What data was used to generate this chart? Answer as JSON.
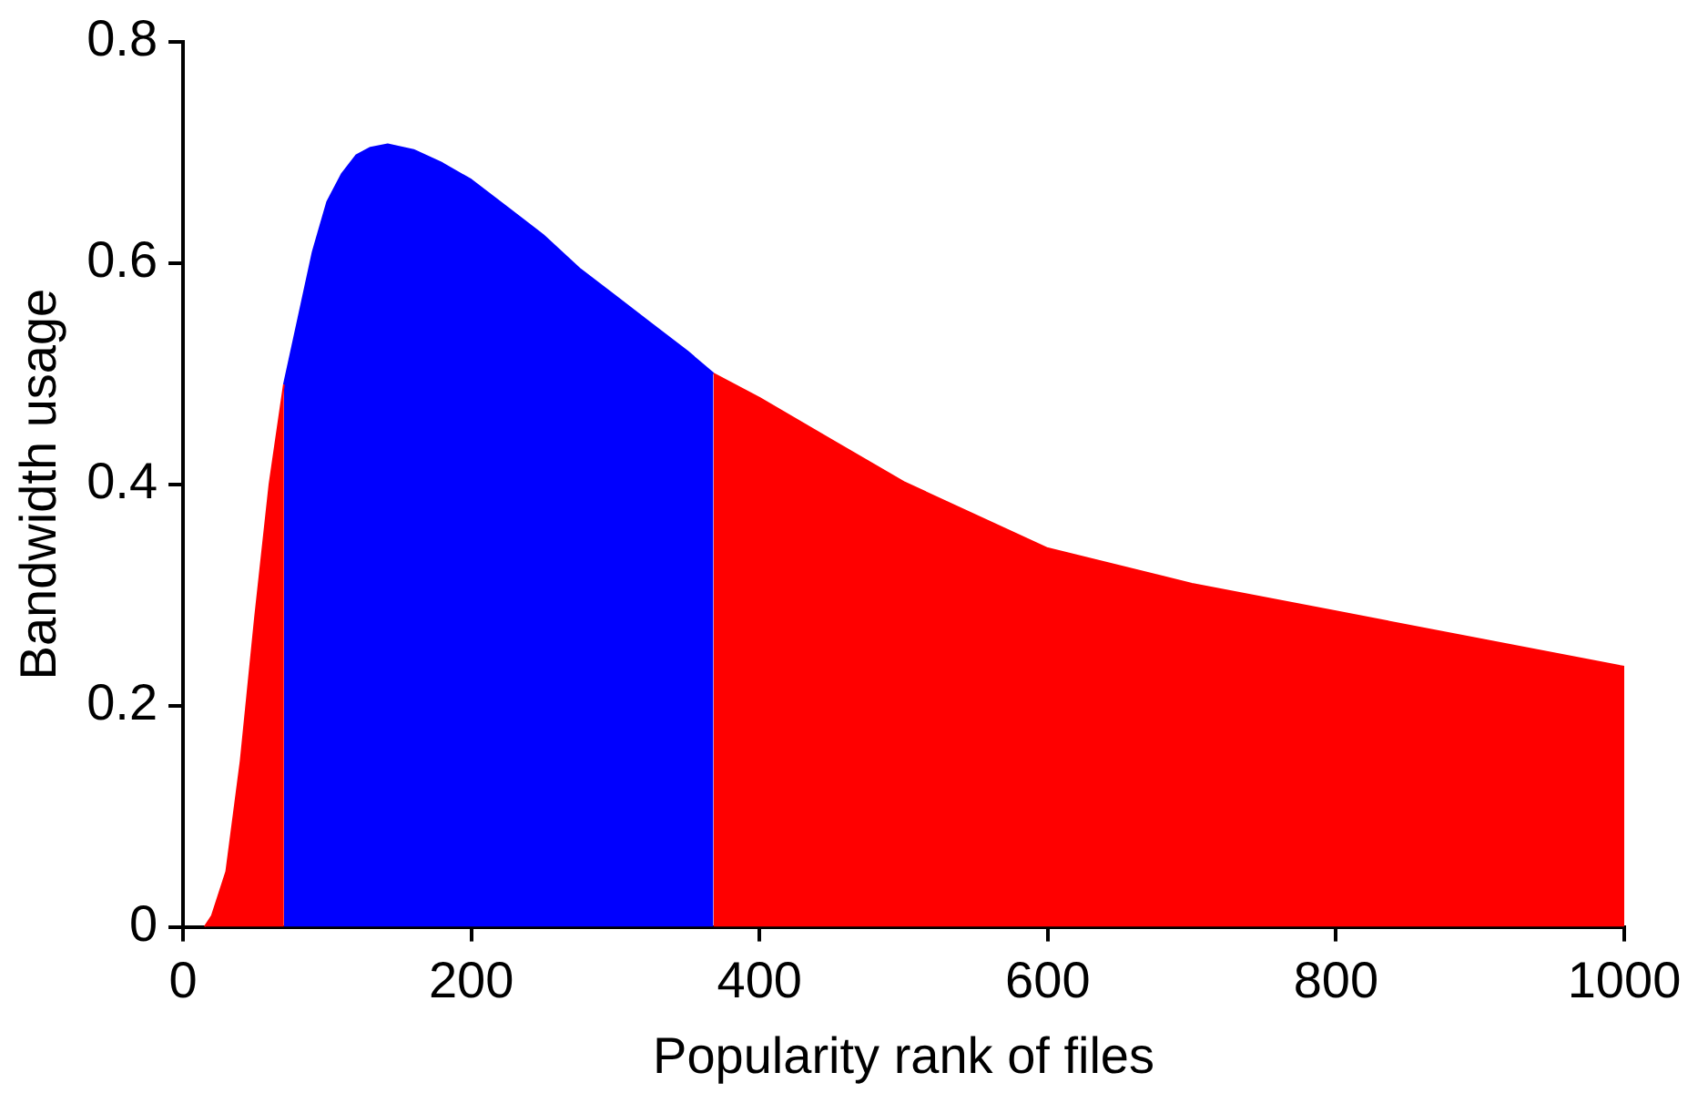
{
  "chart_data": {
    "type": "area",
    "xlabel": "Popularity rank of files",
    "ylabel": "Bandwidth usage",
    "xlim": [
      0,
      1000
    ],
    "xticks": [
      0,
      200,
      400,
      600,
      800,
      1000
    ],
    "ylim": [
      0,
      0.8
    ],
    "yticks": [
      0,
      0.2,
      0.4,
      0.6,
      0.8
    ],
    "grid": false,
    "legend": false,
    "marker": "none",
    "series": [
      {
        "color": "#ff0000",
        "x": [
          15,
          20,
          30,
          40,
          50,
          60,
          70
        ],
        "values": [
          0,
          0.01,
          0.05,
          0.15,
          0.28,
          0.4,
          0.49
        ]
      },
      {
        "color": "#0000ff",
        "x": [
          70,
          80,
          90,
          100,
          110,
          120,
          130,
          142,
          160,
          180,
          200,
          225,
          250,
          275,
          300,
          325,
          350,
          368
        ],
        "values": [
          0.49,
          0.55,
          0.61,
          0.655,
          0.68,
          0.697,
          0.704,
          0.707,
          0.702,
          0.69,
          0.675,
          0.65,
          0.625,
          0.595,
          0.57,
          0.545,
          0.52,
          0.5
        ]
      },
      {
        "color": "#ff0000",
        "x": [
          368,
          400,
          450,
          500,
          600,
          700,
          800,
          900,
          1000
        ],
        "values": [
          0.5,
          0.478,
          0.44,
          0.402,
          0.342,
          0.31,
          0.285,
          0.26,
          0.235
        ]
      }
    ]
  }
}
